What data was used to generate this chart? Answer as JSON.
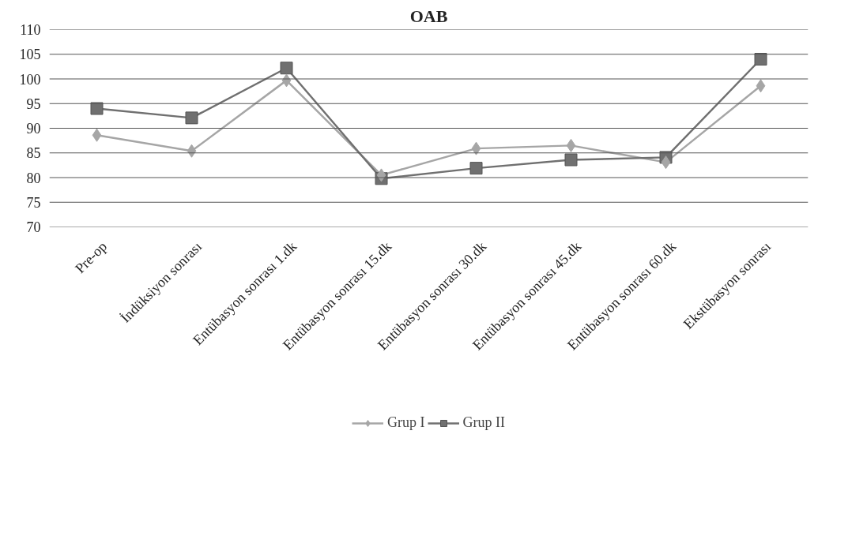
{
  "chart_data": {
    "type": "line",
    "title": "OAB",
    "categories": [
      "Pre-op",
      "İndüksiyon sonrası",
      "Entübasyon sonrası 1.dk",
      "Entübasyon sonrası 15.dk",
      "Entübasyon sonrası 30.dk",
      "Entübasyon sonrası 45.dk",
      "Entübasyon sonrası 60.dk",
      "Ekstübasyon sonrası"
    ],
    "series": [
      {
        "name": "Grup I",
        "color": "#a6a6a6",
        "marker": "diamond",
        "values": [
          88.6,
          85.4,
          99.7,
          80.5,
          85.9,
          86.5,
          83.1,
          98.6
        ]
      },
      {
        "name": "Grup II",
        "color": "#707070",
        "marker": "square",
        "values": [
          94.0,
          92.1,
          102.2,
          79.8,
          81.9,
          83.6,
          84.1,
          104.0
        ]
      }
    ],
    "ylim": [
      70,
      110
    ],
    "yticks": [
      70,
      75,
      80,
      85,
      90,
      95,
      100,
      105,
      110
    ],
    "grid": "y",
    "legend": "bottom",
    "line_style": "solid"
  }
}
